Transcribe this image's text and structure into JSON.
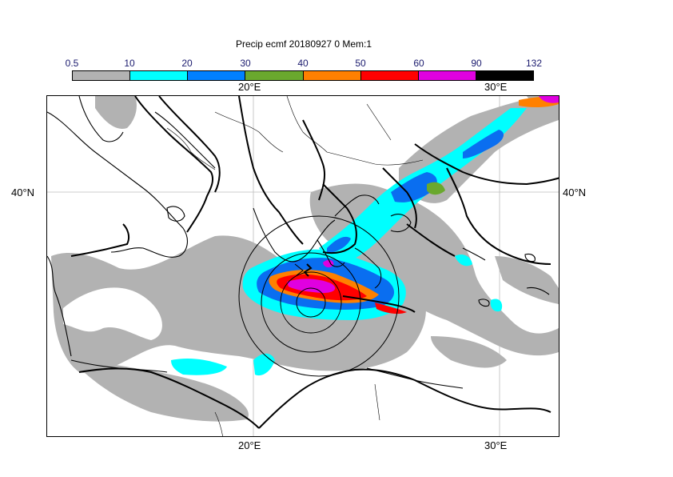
{
  "title": "Precip ecmf 20180927 0 Mem:1",
  "colorbar": {
    "ticks": [
      "0.5",
      "10",
      "20",
      "30",
      "40",
      "50",
      "60",
      "90",
      "132"
    ],
    "colors": [
      "#b2b2b2",
      "#00ffff",
      "#0080ff",
      "#00c8ff",
      "#6aa82e",
      "#ff8000",
      "#ff0000",
      "#e000e0",
      "#000000"
    ]
  },
  "axes": {
    "lon_top": [
      "20°E",
      "30°E"
    ],
    "lon_bottom": [
      "20°E",
      "30°E"
    ],
    "lat_left": [
      "40°N"
    ],
    "lat_right": [
      "40°N"
    ]
  },
  "palette": {
    "light": "#b2b2b2",
    "cyan": "#00ffff",
    "blue": "#0a6ef0",
    "green": "#6aa82e",
    "orange": "#ff8000",
    "red": "#ff0000",
    "magenta": "#e000e0"
  }
}
